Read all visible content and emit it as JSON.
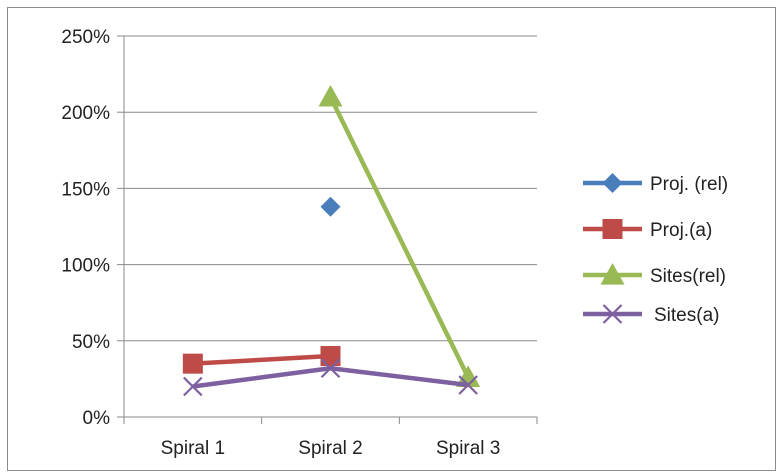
{
  "chart_data": {
    "type": "line",
    "categories": [
      "Spiral 1",
      "Spiral 2",
      "Spiral 3"
    ],
    "ylim": [
      0,
      2.5
    ],
    "yticks": [
      0,
      0.5,
      1.0,
      1.5,
      2.0,
      2.5
    ],
    "ytick_labels": [
      "0%",
      "50%",
      "100%",
      "150%",
      "200%",
      "250%"
    ],
    "grid": true,
    "legend_position": "right",
    "series": [
      {
        "name": "Proj. (rel)",
        "values": [
          null,
          1.38,
          null
        ],
        "color": "#4a7ebb",
        "marker": "diamond"
      },
      {
        "name": "Proj.(a)",
        "values": [
          0.35,
          0.4,
          null
        ],
        "color": "#be4b48",
        "marker": "square"
      },
      {
        "name": "Sites(rel)",
        "values": [
          null,
          2.1,
          0.26
        ],
        "color": "#98b954",
        "marker": "triangle"
      },
      {
        "name": "Sites(a)",
        "values": [
          0.2,
          0.32,
          0.21
        ],
        "color": "#7d60a0",
        "marker": "x"
      }
    ]
  }
}
